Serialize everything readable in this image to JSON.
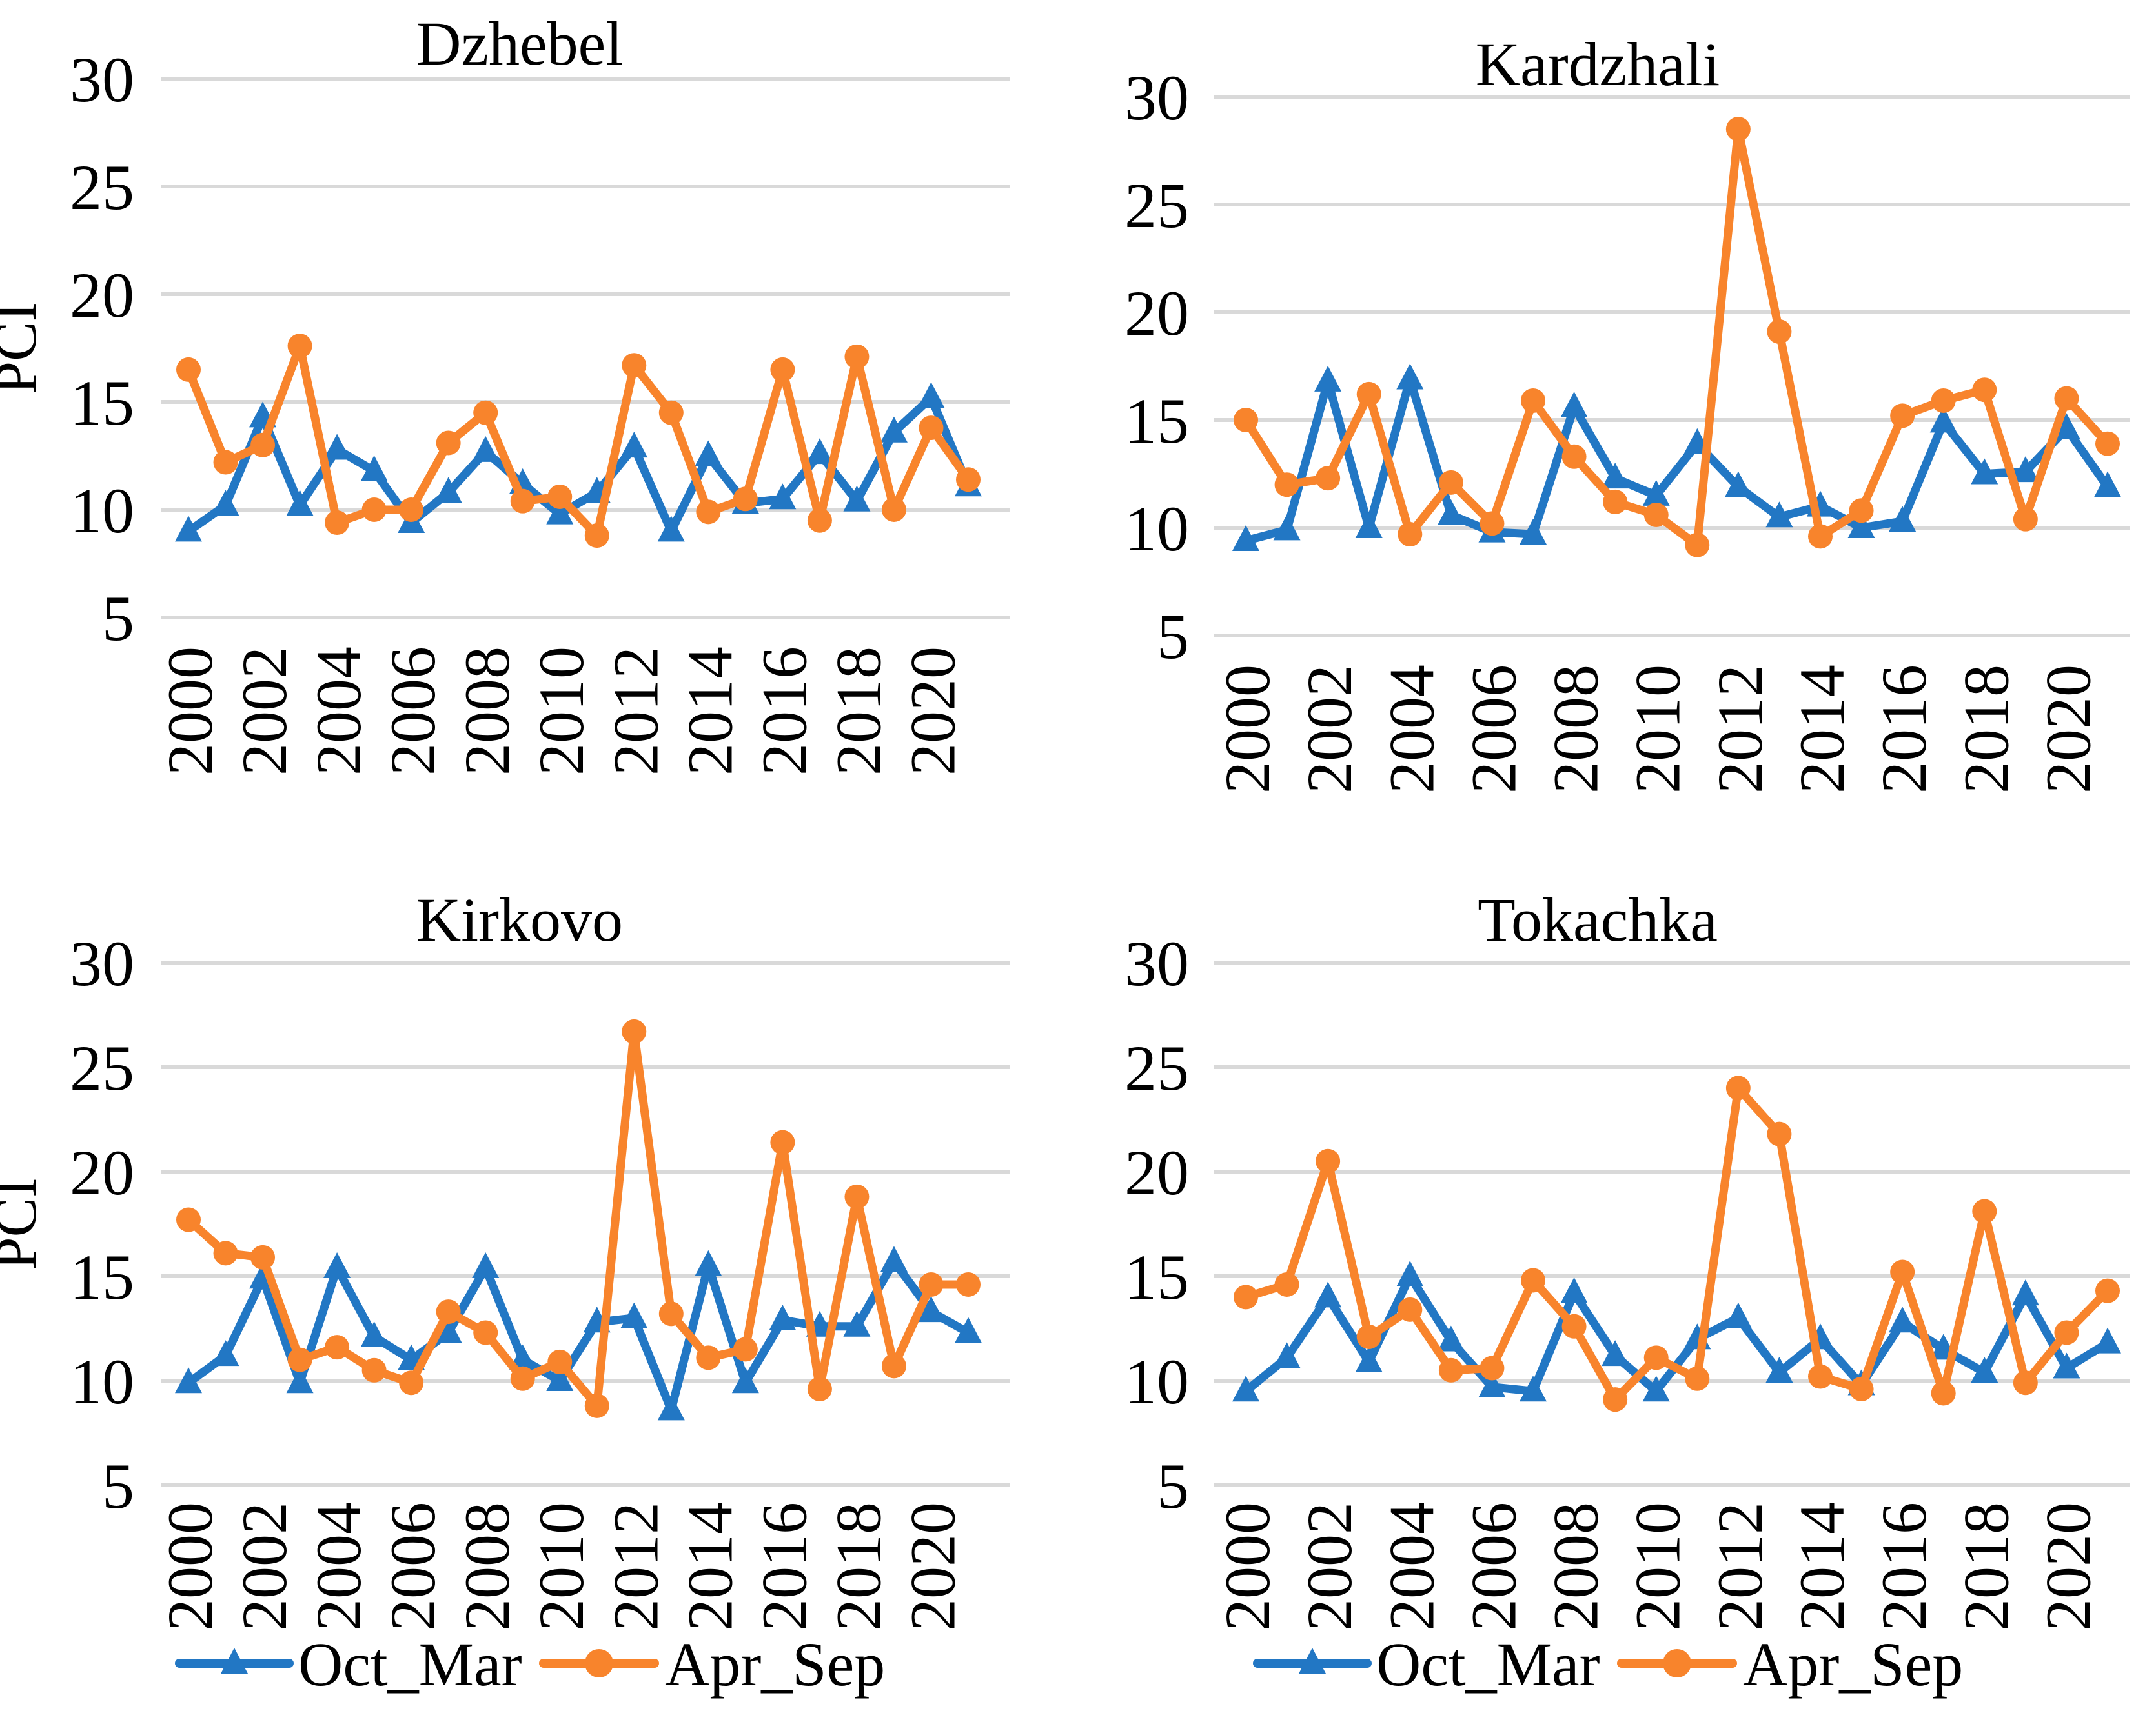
{
  "figure": {
    "background": "#FFFFFF",
    "y_axis_label": "PCI",
    "y_ticks": [
      30,
      25,
      20,
      15,
      10,
      5
    ],
    "x_tick_labels": [
      "2000",
      "2002",
      "2004",
      "2006",
      "2008",
      "2010",
      "2012",
      "2014",
      "2016",
      "2018",
      "2020"
    ],
    "colors": {
      "oct_mar_blue": "#2277C4",
      "apr_sep_orange": "#F8842C",
      "gridline": "#D9D9D9",
      "text": "#000000"
    },
    "legend": {
      "items": [
        {
          "label": "Oct_Mar",
          "marker": "triangle",
          "color": "#2277C4"
        },
        {
          "label": "Apr_Sep",
          "marker": "circle",
          "color": "#F8842C"
        }
      ],
      "position": "bottom (only under Kirkovo and Tokachka charts)"
    }
  },
  "chart_data": [
    {
      "type": "line",
      "title": "Dzhebel",
      "position": "top-left",
      "show_y_axis_label": true,
      "show_legend": false,
      "ylabel": "PCI",
      "ylim": [
        5,
        30
      ],
      "grid": true,
      "x": [
        2000,
        2001,
        2002,
        2003,
        2004,
        2005,
        2006,
        2007,
        2008,
        2009,
        2010,
        2011,
        2012,
        2013,
        2014,
        2015,
        2016,
        2017,
        2018,
        2019,
        2020,
        2021
      ],
      "series": [
        {
          "name": "Oct_Mar",
          "marker": "triangle",
          "color": "#2277C4",
          "values": [
            9.0,
            10.2,
            14.3,
            10.2,
            12.8,
            11.8,
            9.4,
            10.8,
            12.7,
            11.2,
            9.8,
            10.8,
            12.9,
            9.0,
            12.5,
            10.3,
            10.5,
            12.6,
            10.4,
            13.6,
            15.2,
            11.1
          ]
        },
        {
          "name": "Apr_Sep",
          "marker": "circle",
          "color": "#F8842C",
          "values": [
            16.5,
            12.2,
            13.0,
            17.6,
            9.4,
            10.0,
            10.0,
            13.1,
            14.5,
            10.4,
            10.6,
            8.8,
            16.7,
            14.5,
            9.9,
            10.5,
            16.5,
            9.5,
            17.1,
            10.0,
            13.8,
            11.4
          ]
        }
      ]
    },
    {
      "type": "line",
      "title": "Kardzhali",
      "position": "top-right",
      "show_y_axis_label": false,
      "show_legend": false,
      "ylabel": "",
      "ylim": [
        5,
        30
      ],
      "grid": true,
      "x": [
        2000,
        2001,
        2002,
        2003,
        2004,
        2005,
        2006,
        2007,
        2008,
        2009,
        2010,
        2011,
        2012,
        2013,
        2014,
        2015,
        2016,
        2017,
        2018,
        2019,
        2020,
        2021
      ],
      "series": [
        {
          "name": "Oct_Mar",
          "marker": "triangle",
          "color": "#2277C4",
          "values": [
            9.4,
            9.9,
            16.8,
            10.0,
            16.9,
            10.6,
            9.8,
            9.7,
            15.6,
            12.3,
            11.5,
            13.9,
            11.9,
            10.5,
            11.0,
            10.0,
            10.3,
            14.9,
            12.5,
            12.6,
            14.6,
            11.9
          ]
        },
        {
          "name": "Apr_Sep",
          "marker": "circle",
          "color": "#F8842C",
          "values": [
            15.0,
            12.0,
            12.3,
            16.2,
            9.7,
            12.1,
            10.2,
            15.9,
            13.3,
            11.2,
            10.6,
            9.2,
            28.5,
            19.1,
            9.6,
            10.8,
            15.2,
            15.9,
            16.4,
            10.4,
            16.0,
            13.9
          ]
        }
      ]
    },
    {
      "type": "line",
      "title": "Kirkovo",
      "position": "bottom-left",
      "show_y_axis_label": true,
      "show_legend": true,
      "ylabel": "PCI",
      "ylim": [
        5,
        30
      ],
      "grid": true,
      "x": [
        2000,
        2001,
        2002,
        2003,
        2004,
        2005,
        2006,
        2007,
        2008,
        2009,
        2010,
        2011,
        2012,
        2013,
        2014,
        2015,
        2016,
        2017,
        2018,
        2019,
        2020,
        2021
      ],
      "series": [
        {
          "name": "Oct_Mar",
          "marker": "triangle",
          "color": "#2277C4",
          "values": [
            9.9,
            11.2,
            14.9,
            9.9,
            15.4,
            12.1,
            11.0,
            12.3,
            15.4,
            11.0,
            10.0,
            12.8,
            13.0,
            8.6,
            15.5,
            9.9,
            12.9,
            12.6,
            12.6,
            15.7,
            13.3,
            12.3
          ]
        },
        {
          "name": "Apr_Sep",
          "marker": "circle",
          "color": "#F8842C",
          "values": [
            17.7,
            16.1,
            15.9,
            11.0,
            11.6,
            10.5,
            9.9,
            13.3,
            12.3,
            10.1,
            10.9,
            8.8,
            26.7,
            13.2,
            11.1,
            11.5,
            21.4,
            9.6,
            18.8,
            10.7,
            14.6,
            14.6
          ]
        }
      ]
    },
    {
      "type": "line",
      "title": "Tokachka",
      "position": "bottom-right",
      "show_y_axis_label": false,
      "show_legend": true,
      "ylabel": "",
      "ylim": [
        5,
        30
      ],
      "grid": true,
      "x": [
        2000,
        2001,
        2002,
        2003,
        2004,
        2005,
        2006,
        2007,
        2008,
        2009,
        2010,
        2011,
        2012,
        2013,
        2014,
        2015,
        2016,
        2017,
        2018,
        2019,
        2020,
        2021
      ],
      "series": [
        {
          "name": "Oct_Mar",
          "marker": "triangle",
          "color": "#2277C4",
          "values": [
            9.5,
            11.1,
            14.0,
            10.9,
            15.0,
            11.9,
            9.7,
            9.5,
            14.2,
            11.2,
            9.5,
            12.0,
            13.0,
            10.4,
            12.0,
            9.8,
            12.8,
            11.5,
            10.4,
            14.1,
            10.6,
            11.8
          ]
        },
        {
          "name": "Apr_Sep",
          "marker": "circle",
          "color": "#F8842C",
          "values": [
            14.0,
            14.6,
            20.5,
            12.1,
            13.4,
            10.5,
            10.6,
            14.8,
            12.6,
            9.1,
            11.1,
            10.1,
            24.0,
            21.8,
            10.2,
            9.6,
            15.2,
            9.4,
            18.1,
            9.9,
            12.3,
            14.3
          ]
        }
      ]
    }
  ]
}
